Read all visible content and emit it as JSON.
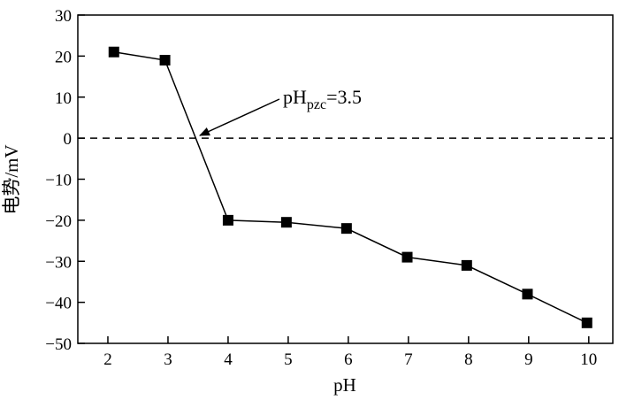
{
  "chart_data": {
    "type": "line",
    "xlabel": "pH",
    "ylabel": "电势/mV",
    "xlim": [
      1.5,
      10.4
    ],
    "ylim": [
      -50,
      30
    ],
    "x_ticks": [
      2,
      3,
      4,
      5,
      6,
      7,
      8,
      9,
      10
    ],
    "y_ticks": [
      30,
      20,
      10,
      0,
      -10,
      -20,
      -30,
      -40,
      -50
    ],
    "x_tick_labels": [
      "2",
      "3",
      "4",
      "5",
      "6",
      "7",
      "8",
      "9",
      "10"
    ],
    "y_tick_labels": [
      "30",
      "20",
      "10",
      "0",
      "−10",
      "−20",
      "−30",
      "−40",
      "−50"
    ],
    "series": [
      {
        "x": [
          2.1,
          2.95,
          4.0,
          4.97,
          5.97,
          6.98,
          7.97,
          8.98,
          9.97
        ],
        "y": [
          21,
          19,
          -20,
          -20.5,
          -22,
          -29,
          -31,
          -38,
          -45
        ]
      }
    ],
    "reference_line": {
      "y": 0,
      "style": "dashed"
    },
    "annotation": {
      "text_main": "pH",
      "text_sub": "pzc",
      "text_tail": "=3.5",
      "arrow_to": [
        3.5,
        0
      ]
    },
    "grid": false,
    "colors": {
      "marker": "#000000",
      "line": "#000000"
    }
  }
}
